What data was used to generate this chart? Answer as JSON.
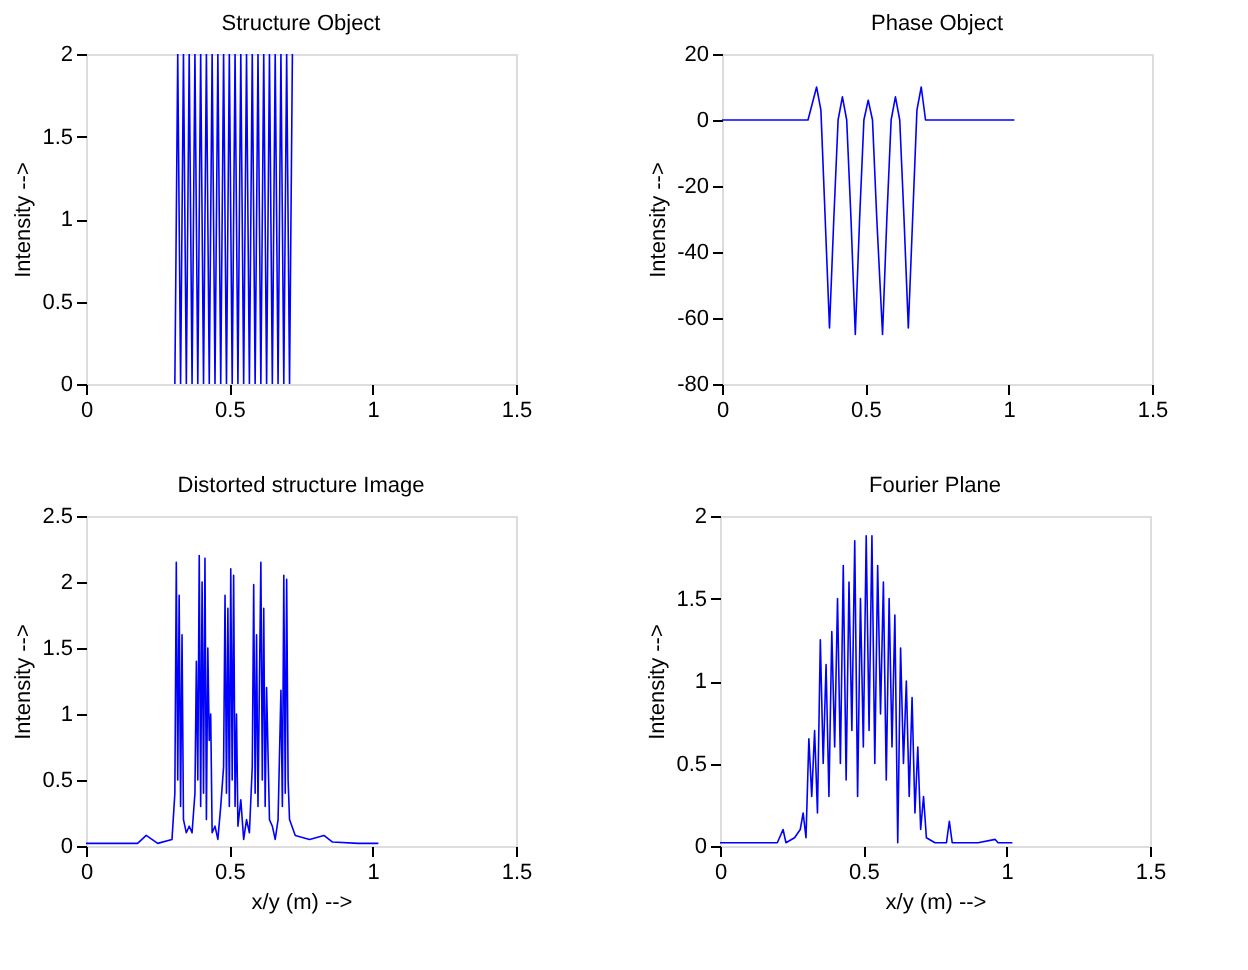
{
  "chart_data": [
    {
      "type": "line",
      "title": "Structure Object",
      "ylabel": "Intensity -->",
      "xlim": [
        0,
        1.5
      ],
      "xticks": [
        0,
        0.5,
        1,
        1.5
      ],
      "ylim": [
        0,
        2
      ],
      "yticks": [
        0,
        0.5,
        1,
        1.5,
        2
      ],
      "grid": false,
      "series": [
        {
          "color": "#0000ff",
          "x": [
            0.31,
            0.32,
            0.33,
            0.34,
            0.35,
            0.36,
            0.37,
            0.38,
            0.39,
            0.4,
            0.41,
            0.42,
            0.43,
            0.44,
            0.45,
            0.46,
            0.47,
            0.48,
            0.49,
            0.5,
            0.51,
            0.52,
            0.53,
            0.54,
            0.55,
            0.56,
            0.57,
            0.58,
            0.59,
            0.6,
            0.61,
            0.62,
            0.63,
            0.64,
            0.65,
            0.66,
            0.67,
            0.68,
            0.69,
            0.7,
            0.71,
            0.72
          ],
          "values": [
            0,
            2,
            0,
            2,
            0,
            2,
            0,
            2,
            0,
            2,
            0,
            2,
            0,
            2,
            0,
            2,
            0,
            2,
            0,
            2,
            0,
            2,
            0,
            2,
            0,
            2,
            0,
            2,
            0,
            2,
            0,
            2,
            0,
            2,
            0,
            2,
            0,
            2,
            0,
            2,
            0,
            2
          ]
        }
      ]
    },
    {
      "type": "line",
      "title": "Phase Object",
      "ylabel": "Intensity -->",
      "xlim": [
        0,
        1.5
      ],
      "xticks": [
        0,
        0.5,
        1,
        1.5
      ],
      "ylim": [
        -80,
        20
      ],
      "yticks": [
        -80,
        -60,
        -40,
        -20,
        0,
        20
      ],
      "grid": false,
      "series": [
        {
          "color": "#0000ff",
          "x": [
            0,
            0.3,
            0.315,
            0.33,
            0.345,
            0.36,
            0.375,
            0.39,
            0.405,
            0.42,
            0.435,
            0.45,
            0.465,
            0.48,
            0.495,
            0.51,
            0.525,
            0.54,
            0.56,
            0.575,
            0.59,
            0.605,
            0.62,
            0.635,
            0.65,
            0.665,
            0.68,
            0.695,
            0.71,
            1.02
          ],
          "values": [
            0,
            0,
            5,
            10,
            3,
            -30,
            -63,
            -30,
            0,
            7,
            0,
            -30,
            -65,
            -30,
            0,
            6,
            0,
            -30,
            -65,
            -30,
            0,
            7,
            0,
            -30,
            -63,
            -30,
            3,
            10,
            0,
            0
          ]
        }
      ]
    },
    {
      "type": "line",
      "title": "Distorted structure Image",
      "xlabel": "x/y (m) -->",
      "ylabel": "Intensity -->",
      "xlim": [
        0,
        1.5
      ],
      "xticks": [
        0,
        0.5,
        1,
        1.5
      ],
      "ylim": [
        0,
        2.5
      ],
      "yticks": [
        0,
        0.5,
        1,
        1.5,
        2,
        2.5
      ],
      "grid": false,
      "series": [
        {
          "color": "#0000ff",
          "x": [
            0,
            0.18,
            0.21,
            0.25,
            0.3,
            0.31,
            0.315,
            0.32,
            0.325,
            0.33,
            0.335,
            0.34,
            0.35,
            0.36,
            0.37,
            0.38,
            0.385,
            0.39,
            0.395,
            0.4,
            0.405,
            0.41,
            0.415,
            0.42,
            0.425,
            0.43,
            0.435,
            0.44,
            0.45,
            0.46,
            0.47,
            0.48,
            0.485,
            0.49,
            0.495,
            0.5,
            0.505,
            0.51,
            0.515,
            0.52,
            0.525,
            0.53,
            0.54,
            0.55,
            0.56,
            0.57,
            0.58,
            0.585,
            0.59,
            0.595,
            0.6,
            0.61,
            0.615,
            0.62,
            0.625,
            0.63,
            0.64,
            0.65,
            0.66,
            0.67,
            0.68,
            0.685,
            0.69,
            0.695,
            0.7,
            0.705,
            0.71,
            0.73,
            0.78,
            0.83,
            0.86,
            0.95,
            1.02
          ],
          "values": [
            0.02,
            0.02,
            0.08,
            0.02,
            0.05,
            0.4,
            2.15,
            0.5,
            1.9,
            0.3,
            1.6,
            0.2,
            0.1,
            0.15,
            0.1,
            0.4,
            1.4,
            0.5,
            2.2,
            0.3,
            2.0,
            0.4,
            2.18,
            0.2,
            1.5,
            0.8,
            1.0,
            0.1,
            0.15,
            0.05,
            0.3,
            0.6,
            1.9,
            0.4,
            1.8,
            0.3,
            2.1,
            0.5,
            2.05,
            0.3,
            1.0,
            0.15,
            0.35,
            0.05,
            0.2,
            0.1,
            0.6,
            1.98,
            0.4,
            1.6,
            0.3,
            2.15,
            0.5,
            1.8,
            0.3,
            1.2,
            0.2,
            0.15,
            0.05,
            0.2,
            1.18,
            0.3,
            2.05,
            0.4,
            2.02,
            0.5,
            0.2,
            0.08,
            0.05,
            0.08,
            0.03,
            0.02,
            0.02
          ]
        }
      ]
    },
    {
      "type": "line",
      "title": "Fourier Plane",
      "xlabel": "x/y (m) -->",
      "ylabel": "Intensity -->",
      "xlim": [
        0,
        1.5
      ],
      "xticks": [
        0,
        0.5,
        1,
        1.5
      ],
      "ylim": [
        0,
        2
      ],
      "yticks": [
        0,
        0.5,
        1,
        1.5,
        2
      ],
      "grid": false,
      "series": [
        {
          "color": "#0000ff",
          "x": [
            0,
            0.2,
            0.22,
            0.23,
            0.26,
            0.28,
            0.29,
            0.3,
            0.31,
            0.32,
            0.33,
            0.34,
            0.35,
            0.36,
            0.37,
            0.38,
            0.39,
            0.4,
            0.41,
            0.42,
            0.43,
            0.44,
            0.45,
            0.46,
            0.47,
            0.48,
            0.49,
            0.5,
            0.51,
            0.52,
            0.53,
            0.54,
            0.55,
            0.56,
            0.57,
            0.58,
            0.59,
            0.6,
            0.61,
            0.62,
            0.63,
            0.64,
            0.65,
            0.66,
            0.67,
            0.68,
            0.69,
            0.7,
            0.71,
            0.72,
            0.75,
            0.79,
            0.8,
            0.81,
            0.9,
            0.96,
            0.97,
            1.02
          ],
          "values": [
            0.02,
            0.02,
            0.1,
            0.02,
            0.05,
            0.1,
            0.2,
            0.05,
            0.65,
            0.3,
            0.7,
            0.2,
            1.25,
            0.5,
            1.1,
            0.3,
            1.3,
            0.6,
            1.5,
            0.5,
            1.7,
            0.4,
            1.6,
            0.7,
            1.85,
            0.3,
            1.5,
            0.6,
            1.88,
            0.7,
            1.88,
            0.5,
            1.7,
            0.8,
            1.6,
            0.4,
            1.5,
            0.6,
            1.4,
            0.02,
            1.2,
            0.5,
            1.0,
            0.3,
            0.9,
            0.2,
            0.6,
            0.1,
            0.3,
            0.05,
            0.02,
            0.02,
            0.15,
            0.02,
            0.02,
            0.04,
            0.02,
            0.02
          ]
        }
      ]
    }
  ]
}
